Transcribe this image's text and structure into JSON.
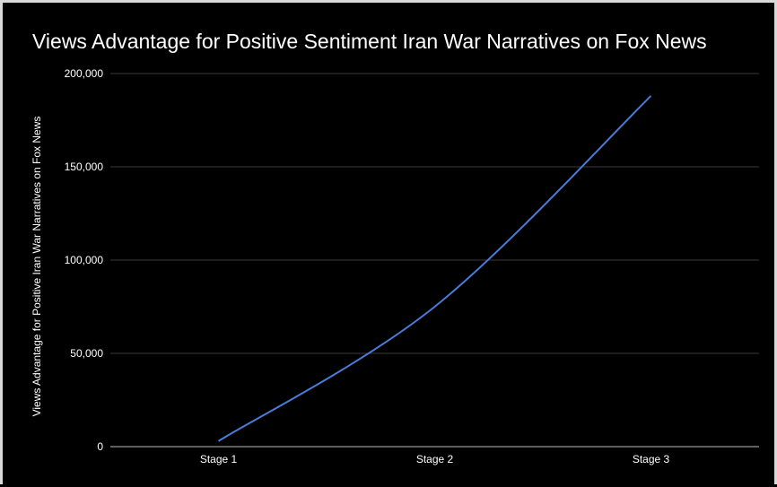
{
  "chart_data": {
    "type": "line",
    "title": "Views Advantage for Positive Sentiment Iran War Narratives on Fox News",
    "xlabel": "",
    "ylabel": "Views Advantage for Positive Iran War Narratives on Fox News",
    "categories": [
      "Stage 1",
      "Stage 2",
      "Stage 3"
    ],
    "series": [
      {
        "values": [
          3000,
          75000,
          188000
        ]
      }
    ],
    "ylim": [
      0,
      200000
    ],
    "yticks": [
      0,
      50000,
      100000,
      150000,
      200000
    ],
    "ytick_labels": [
      "0",
      "50,000",
      "100,000",
      "150,000",
      "200,000"
    ],
    "grid": true,
    "legend": "none",
    "colors": {
      "background": "#000000",
      "line": "#4a7bd9",
      "grid": "#3a3a3a",
      "text": "#ffffff"
    }
  }
}
